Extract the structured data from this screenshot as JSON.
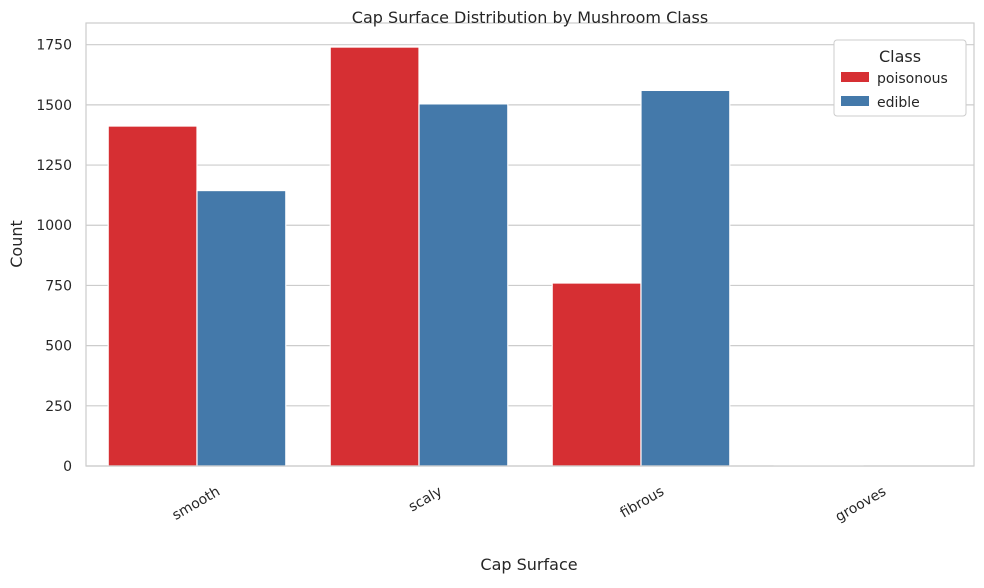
{
  "chart_data": {
    "type": "bar",
    "title": "Cap Surface Distribution by Mushroom Class",
    "xlabel": "Cap Surface",
    "ylabel": "Count",
    "categories": [
      "smooth",
      "scaly",
      "fibrous",
      "grooves"
    ],
    "series": [
      {
        "name": "poisonous",
        "color": "#d62f33",
        "values": [
          1412,
          1740,
          760,
          4
        ]
      },
      {
        "name": "edible",
        "color": "#4479aa",
        "values": [
          1144,
          1504,
          1560,
          0
        ]
      }
    ],
    "ylim": [
      0,
      1840
    ],
    "yticks": [
      0,
      250,
      500,
      750,
      1000,
      1250,
      1500,
      1750
    ],
    "grid": true,
    "legend": {
      "title": "Class",
      "position": "top-right"
    }
  }
}
